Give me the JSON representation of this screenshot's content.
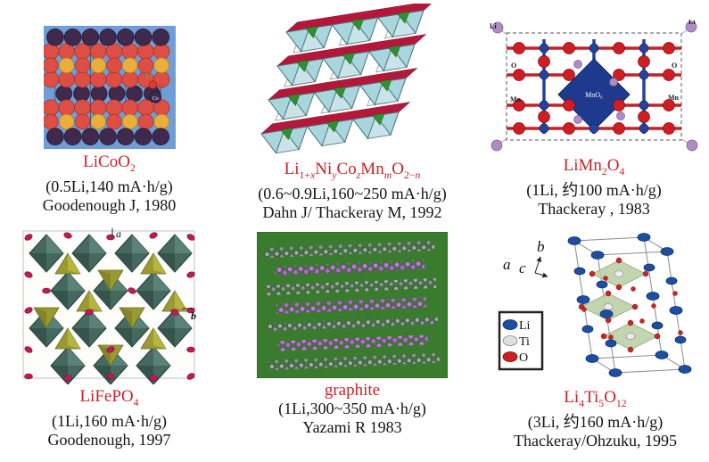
{
  "figure": {
    "background": "#ffffff",
    "accent_red": "#cc2229",
    "text_color": "#141414"
  },
  "panels": [
    {
      "key": "licoo2",
      "formula_html": "LiCoO<sub>2</sub>",
      "capacity": "(0.5Li,140 mA·h/g)",
      "authors": "Goodenough J, 1980",
      "labels": {
        "li": "Li",
        "o": "O",
        "co": "Co"
      }
    },
    {
      "key": "layered-nmc",
      "formula_html": "Li<sub>1+<i>x</i></sub>Ni<sub><i>y</i></sub>Co<sub><i>z</i></sub>Mn<sub><i>m</i></sub>O<sub>2−<i>n</i></sub>",
      "capacity": "(0.6~0.9Li,160~250 mA·h/g)",
      "authors": "Dahn J/ Thackeray M, 1992",
      "labels": {}
    },
    {
      "key": "limn2o4",
      "formula_html": "LiMn<sub>2</sub>O<sub>4</sub>",
      "capacity": "(1Li, 约100 mA·h/g)",
      "authors": "Thackeray , 1983",
      "labels": {
        "li_left": "Li",
        "li_right": "Li",
        "o_left": "O",
        "o_right": "O",
        "mn_left": "Mn",
        "mn_right": "Mn",
        "mno6": "MnO₆"
      }
    },
    {
      "key": "lifepo4",
      "formula_html": "LiFePO<sub>4</sub>",
      "capacity": "(1Li,160 mA·h/g)",
      "authors": "Goodenough, 1997",
      "labels": {
        "a": "a",
        "b": "b"
      }
    },
    {
      "key": "graphite",
      "formula_html": "graphite",
      "capacity": "(1Li,300~350 mA·h/g)",
      "authors": "Yazami R 1983",
      "labels": {}
    },
    {
      "key": "li4ti5o12",
      "formula_html": "Li<sub>4</sub>Ti<sub>5</sub>O<sub>12</sub>",
      "capacity": "(3Li, 约160 mA·h/g)",
      "authors": "Thackeray/Ohzuku, 1995",
      "labels": {
        "a": "a",
        "c": "c",
        "b": "b",
        "legend_li": "Li",
        "legend_ti": "Ti",
        "legend_o": "O"
      }
    }
  ]
}
